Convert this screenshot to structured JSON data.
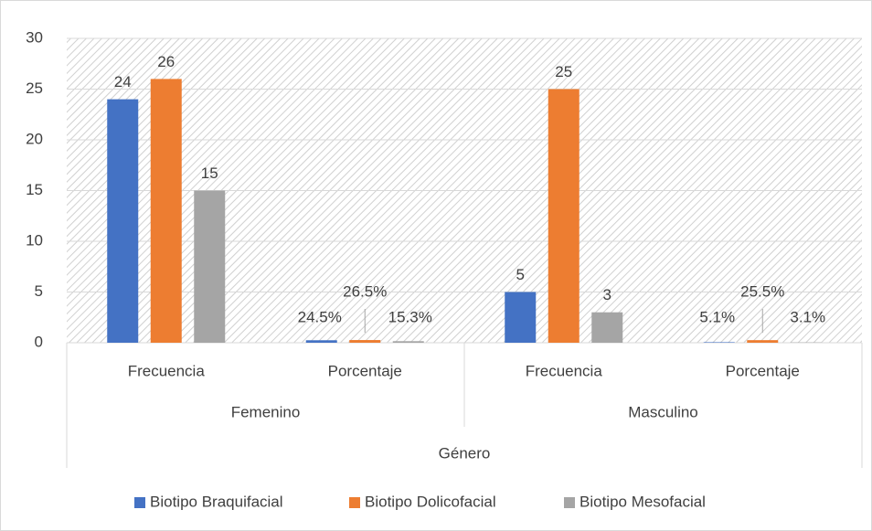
{
  "chart_data": {
    "type": "bar",
    "axis_title": "Género",
    "groups": [
      {
        "label": "Femenino",
        "categories": [
          "Frecuencia",
          "Porcentaje"
        ]
      },
      {
        "label": "Masculino",
        "categories": [
          "Frecuencia",
          "Porcentaje"
        ]
      }
    ],
    "series": [
      {
        "name": "Biotipo Braquifacial",
        "color": "#4472c4",
        "values": [
          24,
          0.245,
          5,
          0.051
        ],
        "value_labels": [
          "24",
          "24.5%",
          "5",
          "5.1%"
        ]
      },
      {
        "name": "Biotipo Dolicofacial",
        "color": "#ed7d31",
        "values": [
          26,
          0.265,
          25,
          0.255
        ],
        "value_labels": [
          "26",
          "26.5%",
          "25",
          "25.5%"
        ]
      },
      {
        "name": "Biotipo Mesofacial",
        "color": "#a5a5a5",
        "values": [
          15,
          0.153,
          3,
          0.031
        ],
        "value_labels": [
          "15",
          "15.3%",
          "3",
          "3.1%"
        ]
      }
    ],
    "ylim": [
      0,
      30
    ],
    "yticks": [
      0,
      5,
      10,
      15,
      20,
      25,
      30
    ],
    "grid": true,
    "legend": "bottom"
  }
}
